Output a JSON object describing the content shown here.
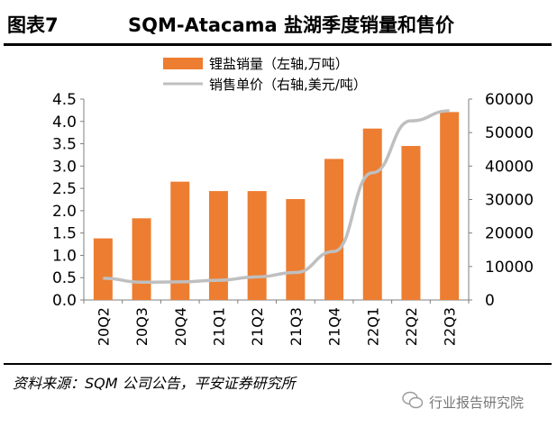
{
  "header": {
    "figure_label": "图表7",
    "title": "SQM-Atacama 盐湖季度销量和售价"
  },
  "footer": {
    "source": "资料来源：SQM 公司公告，平安证券研究所",
    "watermark": "行业报告研究院"
  },
  "icons": {
    "watermark": "wechat-logo-icon"
  },
  "colors": {
    "bar": "#ED7D31",
    "line": "#BFBFBF",
    "axis": "#7F7F7F",
    "text": "#000000"
  },
  "chart_data": {
    "type": "bar",
    "combo_with": "line",
    "categories": [
      "20Q2",
      "20Q3",
      "20Q4",
      "21Q1",
      "21Q2",
      "21Q3",
      "21Q4",
      "22Q1",
      "22Q2",
      "22Q3"
    ],
    "series": [
      {
        "name": "锂盐销量（左轴,万吨）",
        "type": "bar",
        "axis": "left",
        "values": [
          1.38,
          1.83,
          2.65,
          2.44,
          2.44,
          2.26,
          3.16,
          3.84,
          3.45,
          4.21
        ]
      },
      {
        "name": "销售单价（右轴,美元/吨）",
        "type": "line",
        "axis": "right",
        "values": [
          6500,
          5300,
          5400,
          5900,
          6900,
          8200,
          14500,
          38000,
          53500,
          56500
        ]
      }
    ],
    "y_left": {
      "min": 0,
      "max": 4.5,
      "ticks": [
        "0.0",
        "0.5",
        "1.0",
        "1.5",
        "2.0",
        "2.5",
        "3.0",
        "3.5",
        "4.0",
        "4.5"
      ]
    },
    "y_right": {
      "min": 0,
      "max": 60000,
      "ticks": [
        "0",
        "10000",
        "20000",
        "30000",
        "40000",
        "50000",
        "60000"
      ]
    },
    "x_tick_rotation": "vertical",
    "grid": false,
    "legend_position": "top-center"
  }
}
